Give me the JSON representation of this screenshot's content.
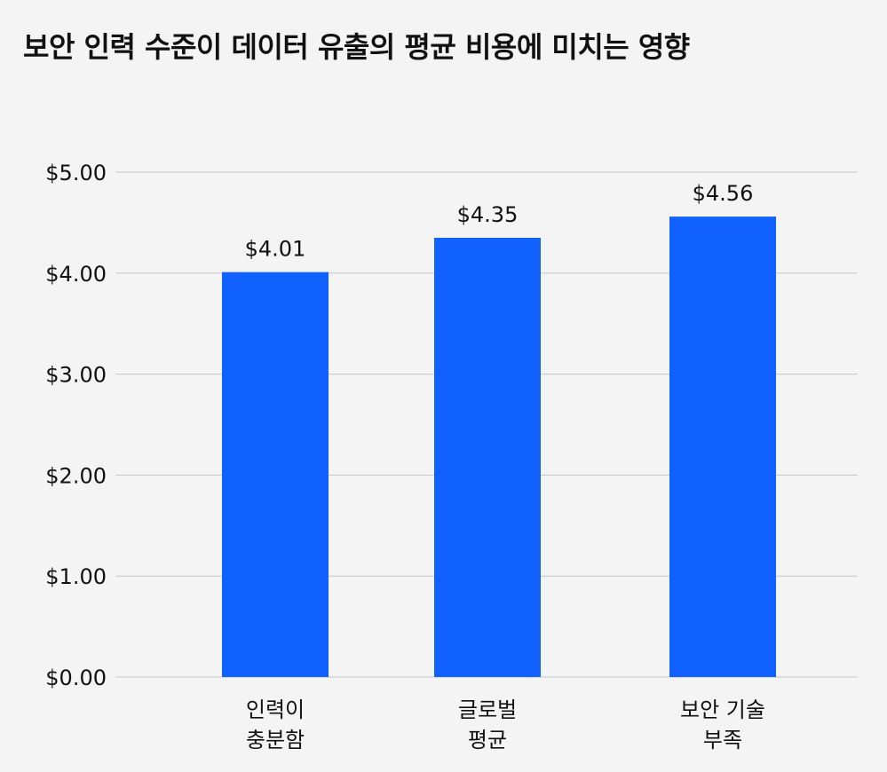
{
  "chart_data": {
    "type": "bar",
    "title": "보안 인력 수준이 데이터 유출의 평균 비용에 미치는 영향",
    "xlabel": "",
    "ylabel": "",
    "categories": [
      [
        "인력이",
        "충분함"
      ],
      [
        "글로벌",
        "평균"
      ],
      [
        "보안 기술",
        "부족"
      ]
    ],
    "values": [
      4.01,
      4.35,
      4.56
    ],
    "value_labels": [
      "$4.01",
      "$4.35",
      "$4.56"
    ],
    "ylim": [
      0,
      5
    ],
    "yticks": [
      0,
      1,
      2,
      3,
      4,
      5
    ],
    "ytick_labels": [
      "$0.00",
      "$1.00",
      "$2.00",
      "$3.00",
      "$4.00",
      "$5.00"
    ],
    "grid": true,
    "legend": "none",
    "bar_color": "#1061fe",
    "grid_color": "#c6c6c6"
  }
}
